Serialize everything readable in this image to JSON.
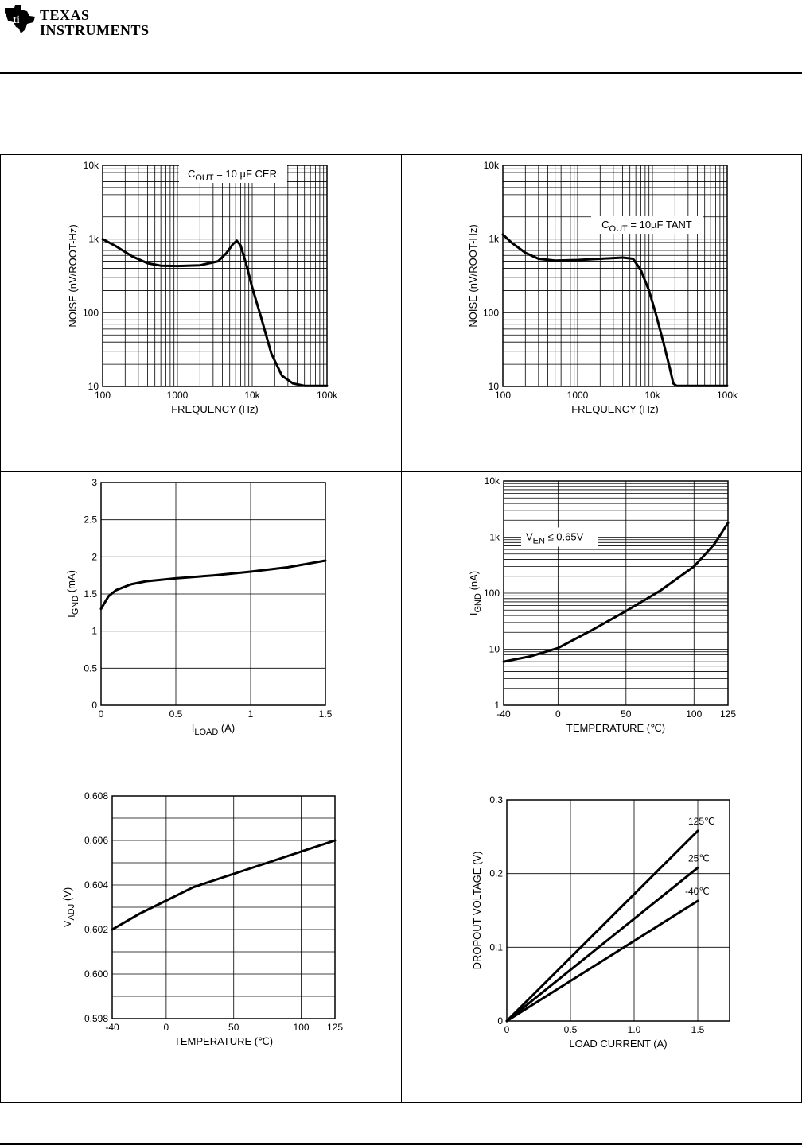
{
  "header": {
    "brand_line1": "TEXAS",
    "brand_line2": "INSTRUMENTS"
  },
  "chart_data": [
    {
      "id": "noise-cer",
      "type": "line",
      "xscale": "log",
      "yscale": "log",
      "xlim": [
        100,
        100000
      ],
      "ylim": [
        10,
        10000
      ],
      "xticks": [
        100,
        1000,
        10000,
        100000
      ],
      "xticklabels": [
        "100",
        "1000",
        "10k",
        "100k"
      ],
      "yticks": [
        10,
        100,
        1000,
        10000
      ],
      "yticklabels": [
        "10",
        "100",
        "1k",
        "10k"
      ],
      "xlabel": "FREQUENCY (Hz)",
      "ylabel": "NOISE (nV/ROOT-Hz)",
      "annotation": {
        "main": "C",
        "sub": "OUT",
        "rest": " = 10 µF CER"
      },
      "series": [
        {
          "name": "C_OUT = 10 µF CER",
          "points": [
            [
              100,
              1000
            ],
            [
              150,
              800
            ],
            [
              250,
              580
            ],
            [
              400,
              470
            ],
            [
              600,
              435
            ],
            [
              1000,
              430
            ],
            [
              2000,
              440
            ],
            [
              3500,
              500
            ],
            [
              4500,
              640
            ],
            [
              5500,
              850
            ],
            [
              6200,
              950
            ],
            [
              7000,
              820
            ],
            [
              8500,
              420
            ],
            [
              10000,
              220
            ],
            [
              13000,
              90
            ],
            [
              18000,
              28
            ],
            [
              25000,
              14
            ],
            [
              35000,
              11
            ],
            [
              50000,
              10.2
            ],
            [
              100000,
              10.2
            ]
          ]
        }
      ]
    },
    {
      "id": "noise-tant",
      "type": "line",
      "xscale": "log",
      "yscale": "log",
      "xlim": [
        100,
        100000
      ],
      "ylim": [
        10,
        10000
      ],
      "xticks": [
        100,
        1000,
        10000,
        100000
      ],
      "xticklabels": [
        "100",
        "1000",
        "10k",
        "100k"
      ],
      "yticks": [
        10,
        100,
        1000,
        10000
      ],
      "yticklabels": [
        "10",
        "100",
        "1k",
        "10k"
      ],
      "xlabel": "FREQUENCY (Hz)",
      "ylabel": "NOISE (nV/ROOT-Hz)",
      "annotation": {
        "main": "C",
        "sub": "OUT",
        "rest": " = 10µF TANT"
      },
      "series": [
        {
          "name": "C_OUT = 10µF TANT",
          "points": [
            [
              100,
              1150
            ],
            [
              130,
              900
            ],
            [
              200,
              650
            ],
            [
              300,
              540
            ],
            [
              500,
              510
            ],
            [
              1000,
              520
            ],
            [
              2000,
              540
            ],
            [
              4000,
              560
            ],
            [
              5500,
              540
            ],
            [
              7000,
              380
            ],
            [
              9000,
              200
            ],
            [
              11000,
              100
            ],
            [
              14000,
              40
            ],
            [
              17000,
              18
            ],
            [
              19000,
              11
            ],
            [
              21000,
              10.2
            ],
            [
              100000,
              10.2
            ]
          ]
        }
      ]
    },
    {
      "id": "ignd-iload",
      "type": "line",
      "xscale": "linear",
      "yscale": "linear",
      "xlim": [
        0,
        1.5
      ],
      "ylim": [
        0,
        3
      ],
      "xticks": [
        0,
        0.5,
        1,
        1.5
      ],
      "xticklabels": [
        "0",
        "0.5",
        "1",
        "1.5"
      ],
      "yticks": [
        0,
        0.5,
        1,
        1.5,
        2,
        2.5,
        3
      ],
      "yticklabels": [
        "0",
        "0.5",
        "1",
        "1.5",
        "2",
        "2.5",
        "3"
      ],
      "xlabel": {
        "main": "I",
        "sub": "LOAD",
        "rest": " (A)"
      },
      "ylabel": {
        "main": "I",
        "sub": "GND",
        "rest": " (mA)"
      },
      "series": [
        {
          "name": "I_GND",
          "points": [
            [
              0,
              1.3
            ],
            [
              0.05,
              1.47
            ],
            [
              0.1,
              1.55
            ],
            [
              0.2,
              1.63
            ],
            [
              0.3,
              1.67
            ],
            [
              0.5,
              1.71
            ],
            [
              0.75,
              1.75
            ],
            [
              1.0,
              1.8
            ],
            [
              1.25,
              1.86
            ],
            [
              1.5,
              1.95
            ]
          ]
        }
      ]
    },
    {
      "id": "ignd-temp",
      "type": "line",
      "xscale": "linear",
      "yscale": "log",
      "xlim": [
        -40,
        125
      ],
      "ylim": [
        1,
        10000
      ],
      "xticks": [
        -40,
        0,
        50,
        100,
        125
      ],
      "xticklabels": [
        "-40",
        "0",
        "50",
        "100",
        "125"
      ],
      "yticks": [
        1,
        10,
        100,
        1000,
        10000
      ],
      "yticklabels": [
        "1",
        "10",
        "100",
        "1k",
        "10k"
      ],
      "xlabel": "TEMPERATURE (℃)",
      "ylabel": {
        "main": "I",
        "sub": "GND",
        "rest": " (nA)"
      },
      "annotation": {
        "main": "V",
        "sub": "EN",
        "rest": " ≤ 0.65V"
      },
      "series": [
        {
          "name": "V_EN ≤ 0.65V",
          "points": [
            [
              -40,
              6
            ],
            [
              -20,
              7.5
            ],
            [
              0,
              10.5
            ],
            [
              25,
              22
            ],
            [
              50,
              48
            ],
            [
              75,
              110
            ],
            [
              100,
              300
            ],
            [
              115,
              750
            ],
            [
              125,
              1800
            ]
          ]
        }
      ]
    },
    {
      "id": "vadj-temp",
      "type": "line",
      "xscale": "linear",
      "yscale": "linear",
      "xlim": [
        -40,
        125
      ],
      "ylim": [
        0.598,
        0.608
      ],
      "xticks": [
        -40,
        0,
        50,
        100,
        125
      ],
      "xticklabels": [
        "-40",
        "0",
        "50",
        "100",
        "125"
      ],
      "yticks": [
        0.598,
        0.6,
        0.602,
        0.604,
        0.606,
        0.608
      ],
      "yticklabels": [
        "0.598",
        "0.600",
        "0.602",
        "0.604",
        "0.606",
        "0.608"
      ],
      "xlabel": "TEMPERATURE (℃)",
      "ylabel": {
        "main": "V",
        "sub": "ADJ",
        "rest": " (V)"
      },
      "series": [
        {
          "name": "V_ADJ",
          "points": [
            [
              -40,
              0.602
            ],
            [
              -20,
              0.6027
            ],
            [
              0,
              0.6033
            ],
            [
              20,
              0.6039
            ],
            [
              50,
              0.6045
            ],
            [
              75,
              0.605
            ],
            [
              100,
              0.6055
            ],
            [
              125,
              0.606
            ]
          ]
        }
      ]
    },
    {
      "id": "dropout",
      "type": "line",
      "xscale": "linear",
      "yscale": "linear",
      "xlim": [
        0,
        1.75
      ],
      "ylim": [
        0,
        0.3
      ],
      "xticks": [
        0,
        0.5,
        1.0,
        1.5
      ],
      "xticklabels": [
        "0",
        "0.5",
        "1.0",
        "1.5"
      ],
      "yticks": [
        0,
        0.1,
        0.2,
        0.3
      ],
      "yticklabels": [
        "0",
        "0.1",
        "0.2",
        "0.3"
      ],
      "xlabel": "LOAD CURRENT (A)",
      "ylabel": "DROPOUT VOLTAGE (V)",
      "series": [
        {
          "name": "125℃",
          "points": [
            [
              0,
              0
            ],
            [
              1.5,
              0.258
            ]
          ]
        },
        {
          "name": "25℃",
          "points": [
            [
              0,
              0
            ],
            [
              1.5,
              0.208
            ]
          ]
        },
        {
          "name": "-40℃",
          "points": [
            [
              0,
              0
            ],
            [
              1.5,
              0.163
            ]
          ]
        }
      ]
    }
  ]
}
